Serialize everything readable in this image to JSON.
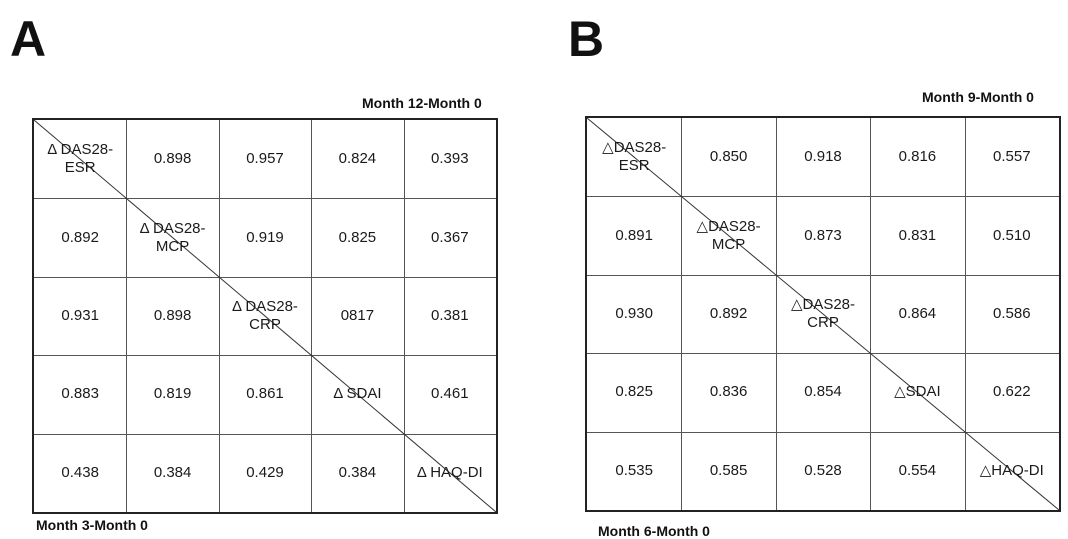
{
  "panel_a": {
    "letter": "A",
    "top_label": "Month 12-Month 0",
    "bottom_label": "Month 3-Month 0",
    "rows": [
      [
        [
          "Δ DAS28-",
          "ESR"
        ],
        "0.898",
        "0.957",
        "0.824",
        "0.393"
      ],
      [
        "0.892",
        [
          "Δ DAS28-",
          "MCP"
        ],
        "0.919",
        "0.825",
        "0.367"
      ],
      [
        "0.931",
        "0.898",
        [
          "Δ DAS28-",
          "CRP"
        ],
        "0817",
        "0.381"
      ],
      [
        "0.883",
        "0.819",
        "0.861",
        [
          "Δ SDAI"
        ],
        "0.461"
      ],
      [
        "0.438",
        "0.384",
        "0.429",
        "0.384",
        [
          "Δ HAQ-DI"
        ]
      ]
    ]
  },
  "panel_b": {
    "letter": "B",
    "top_label": "Month 9-Month 0",
    "bottom_label": "Month 6-Month 0",
    "rows": [
      [
        [
          "△DAS28-",
          "ESR"
        ],
        "0.850",
        "0.918",
        "0.816",
        "0.557"
      ],
      [
        "0.891",
        [
          "△DAS28-",
          "MCP"
        ],
        "0.873",
        "0.831",
        "0.510"
      ],
      [
        "0.930",
        "0.892",
        [
          "△DAS28-",
          "CRP"
        ],
        "0.864",
        "0.586"
      ],
      [
        "0.825",
        "0.836",
        "0.854",
        [
          "△SDAI"
        ],
        "0.622"
      ],
      [
        "0.535",
        "0.585",
        "0.528",
        "0.554",
        [
          "△HAQ-DI"
        ]
      ]
    ]
  }
}
